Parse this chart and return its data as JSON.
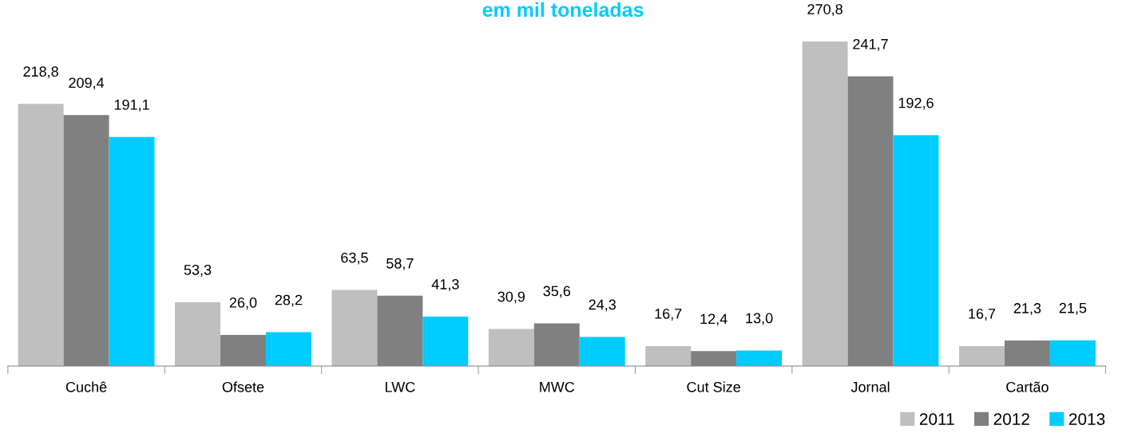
{
  "chart_data": {
    "type": "bar",
    "title": "em mil toneladas",
    "categories": [
      "Cuchê",
      "Ofsete",
      "LWC",
      "MWC",
      "Cut Size",
      "Jornal",
      "Cartão"
    ],
    "series": [
      {
        "name": "2011",
        "color": "#bfbfbf",
        "values": [
          218.8,
          53.3,
          63.5,
          30.9,
          16.7,
          270.8,
          16.7
        ],
        "value_labels": [
          "218,8",
          "53,3",
          "63,5",
          "30,9",
          "16,7",
          "270,8",
          "16,7"
        ]
      },
      {
        "name": "2012",
        "color": "#808080",
        "values": [
          209.4,
          26.0,
          58.7,
          35.6,
          12.4,
          241.7,
          21.3
        ],
        "value_labels": [
          "209,4",
          "26,0",
          "58,7",
          "35,6",
          "12,4",
          "241,7",
          "21,3"
        ]
      },
      {
        "name": "2013",
        "color": "#00ccff",
        "values": [
          191.1,
          28.2,
          41.3,
          24.3,
          13.0,
          192.6,
          21.5
        ],
        "value_labels": [
          "191,1",
          "28,2",
          "41,3",
          "24,3",
          "13,0",
          "192,6",
          "21,5"
        ]
      }
    ],
    "legend": "bottom right",
    "grid": false,
    "tick_labels": "x"
  }
}
